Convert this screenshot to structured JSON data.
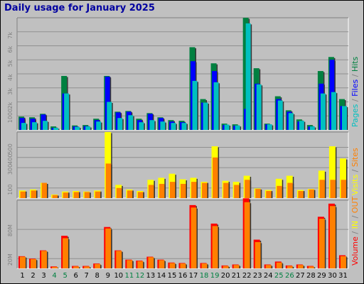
{
  "title": "Daily usage for January 2025",
  "colors": {
    "background": "#c0c0c0",
    "title": "#0000a0",
    "pages": "#00c0c0",
    "files": "#0000ff",
    "hits": "#008040",
    "visits": "#ffff00",
    "sites": "#ff8000",
    "volume": "#ff0000",
    "weekend_label": "#008040"
  },
  "chart_data": [
    {
      "type": "bar",
      "panel": "pages-files-hits",
      "legend": [
        "Pages",
        "Files",
        "Hits"
      ],
      "legend_position": "right-vertical",
      "y_tick_labels": [
        "1000",
        "2k",
        "3k",
        "4k",
        "5k",
        "6k",
        "7k"
      ],
      "y_tick_values": [
        1000,
        2000,
        3000,
        4000,
        5000,
        6000,
        7000
      ],
      "ylim": [
        0,
        8000
      ],
      "categories": [
        "1",
        "2",
        "3",
        "4",
        "5",
        "6",
        "7",
        "8",
        "9",
        "10",
        "11",
        "12",
        "13",
        "14",
        "15",
        "16",
        "17",
        "18",
        "19",
        "20",
        "21",
        "22",
        "23",
        "24",
        "25",
        "26",
        "27",
        "28",
        "29",
        "30",
        "31"
      ],
      "weekend_days": [
        "4",
        "5",
        "11",
        "12",
        "18",
        "19",
        "25",
        "26"
      ],
      "series": [
        {
          "name": "Hits",
          "values": [
            950,
            900,
            1150,
            250,
            3850,
            320,
            350,
            800,
            3850,
            1300,
            1350,
            800,
            1200,
            900,
            700,
            650,
            5900,
            2200,
            4750,
            450,
            400,
            8000,
            4400,
            450,
            2400,
            1400,
            750,
            350,
            4200,
            5200,
            2200
          ]
        },
        {
          "name": "Files",
          "values": [
            850,
            800,
            1100,
            150,
            2600,
            250,
            270,
            700,
            3800,
            1250,
            1300,
            700,
            1150,
            850,
            600,
            550,
            4900,
            1950,
            4200,
            350,
            300,
            1500,
            3300,
            400,
            2200,
            1300,
            600,
            250,
            3300,
            5000,
            1700
          ]
        },
        {
          "name": "Pages",
          "values": [
            500,
            550,
            650,
            150,
            2600,
            220,
            250,
            600,
            2000,
            850,
            1050,
            550,
            700,
            600,
            500,
            500,
            3500,
            1950,
            3400,
            380,
            320,
            7600,
            3250,
            400,
            2100,
            1200,
            650,
            250,
            2600,
            2700,
            1700
          ]
        }
      ]
    },
    {
      "type": "bar",
      "panel": "visits-sites",
      "legend": [
        "Visits",
        "Sites"
      ],
      "legend_position": "right-vertical",
      "y_tick_labels": [
        "100",
        "300",
        "400",
        "500"
      ],
      "y_tick_values": [
        100,
        300,
        400,
        500
      ],
      "ylim": [
        0,
        650
      ],
      "categories": [
        "1",
        "2",
        "3",
        "4",
        "5",
        "6",
        "7",
        "8",
        "9",
        "10",
        "11",
        "12",
        "13",
        "14",
        "15",
        "16",
        "17",
        "18",
        "19",
        "20",
        "21",
        "22",
        "23",
        "24",
        "25",
        "26",
        "27",
        "28",
        "29",
        "30",
        "31"
      ],
      "series": [
        {
          "name": "Visits",
          "values": [
            75,
            85,
            150,
            35,
            65,
            70,
            65,
            75,
            650,
            130,
            85,
            70,
            180,
            200,
            240,
            185,
            200,
            160,
            510,
            170,
            160,
            220,
            95,
            80,
            190,
            220,
            80,
            90,
            270,
            510,
            390
          ]
        },
        {
          "name": "Sites",
          "values": [
            65,
            75,
            150,
            30,
            55,
            60,
            60,
            65,
            340,
            100,
            75,
            60,
            130,
            140,
            160,
            140,
            160,
            150,
            400,
            150,
            130,
            180,
            90,
            70,
            120,
            150,
            70,
            85,
            180,
            180,
            180
          ]
        }
      ]
    },
    {
      "type": "bar",
      "panel": "volume",
      "legend": [
        "Volume",
        "IN",
        "OUT"
      ],
      "legend_position": "right-vertical",
      "y_tick_labels": [
        "20M",
        "80M"
      ],
      "y_tick_values": [
        20,
        80
      ],
      "ylim": [
        0,
        140
      ],
      "categories": [
        "1",
        "2",
        "3",
        "4",
        "5",
        "6",
        "7",
        "8",
        "9",
        "10",
        "11",
        "12",
        "13",
        "14",
        "15",
        "16",
        "17",
        "18",
        "19",
        "20",
        "21",
        "22",
        "23",
        "24",
        "25",
        "26",
        "27",
        "28",
        "29",
        "30",
        "31"
      ],
      "series": [
        {
          "name": "Volume",
          "values": [
            25,
            20,
            37,
            4,
            67,
            5,
            5,
            10,
            85,
            37,
            18,
            16,
            24,
            18,
            12,
            11,
            130,
            11,
            92,
            6,
            8,
            144,
            59,
            8,
            14,
            6,
            8,
            5,
            106,
            133,
            27
          ]
        },
        {
          "name": "OUT",
          "values": [
            24,
            19,
            36,
            3,
            62,
            4,
            4,
            9,
            82,
            36,
            17,
            15,
            23,
            17,
            11,
            10,
            125,
            10,
            87,
            5,
            7,
            136,
            54,
            7,
            12,
            5,
            7,
            4,
            102,
            128,
            25
          ]
        }
      ]
    }
  ]
}
